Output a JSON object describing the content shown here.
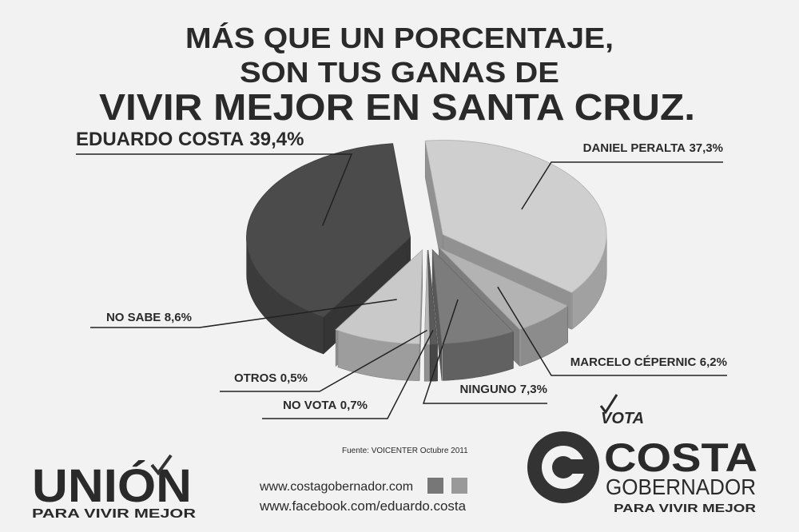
{
  "chart_data": {
    "type": "pie",
    "title_lines": [
      "MÁS QUE UN PORCENTAJE,",
      "SON TUS GANAS DE",
      "VIVIR MEJOR EN SANTA CRUZ."
    ],
    "categories": [
      "EDUARDO COSTA",
      "DANIEL PERALTA",
      "MARCELO CÉPERNIC",
      "NINGUNO",
      "NO VOTA",
      "OTROS",
      "NO SABE"
    ],
    "values": [
      39.4,
      37.3,
      6.2,
      7.3,
      0.7,
      0.5,
      8.6
    ],
    "value_labels": [
      "39,4%",
      "37,3%",
      "6,2%",
      "7,3%",
      "0,7%",
      "0,5%",
      "8,6%"
    ],
    "colors": [
      "#4b4b4b",
      "#cfcfcf",
      "#b3b3b3",
      "#7c7c7c",
      "#5a5a5a",
      "#b8b8b8",
      "#c9c9c9"
    ],
    "source": "Fuente: VOICENTER Octubre 2011"
  },
  "footer": {
    "union_logo": "UNIÓN",
    "union_tagline": "PARA VIVIR MEJOR",
    "website": "www.costagobernador.com",
    "facebook": "www.facebook.com/eduardo.costa",
    "vote_label": "VOTA",
    "candidate": "COSTA",
    "office": "GOBERNADOR",
    "candidate_tagline": "PARA VIVIR MEJOR"
  }
}
